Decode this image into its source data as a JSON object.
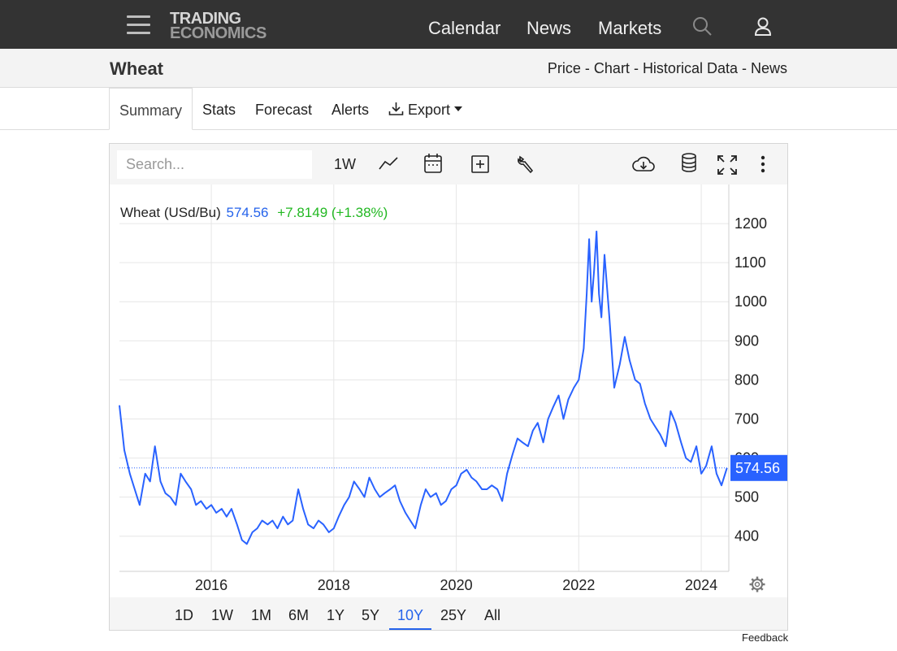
{
  "brand": {
    "line1": "TRADING",
    "line2": "ECONOMICS"
  },
  "nav": {
    "calendar": "Calendar",
    "news": "News",
    "markets": "Markets",
    "search_icon": "search-icon",
    "user_icon": "user-icon"
  },
  "header": {
    "title": "Wheat",
    "breadcrumb": [
      "Price",
      "Chart",
      "Historical Data",
      "News"
    ],
    "separator": " - "
  },
  "tabs": {
    "summary": "Summary",
    "stats": "Stats",
    "forecast": "Forecast",
    "alerts": "Alerts",
    "export": "Export"
  },
  "toolbar": {
    "search_placeholder": "Search...",
    "interval": "1W"
  },
  "legend": {
    "name": "Wheat (USd/Bu)",
    "price": "574.56",
    "change": "+7.8149 (+1.38%)"
  },
  "last_price_label": "574.56",
  "ranges": {
    "d1": "1D",
    "w1": "1W",
    "m1": "1M",
    "m6": "6M",
    "y1": "1Y",
    "y5": "5Y",
    "y10": "10Y",
    "y25": "25Y",
    "all": "All",
    "active": "10Y"
  },
  "feedback": "Feedback",
  "colors": {
    "line": "#2962ff",
    "accent": "#2563eb",
    "change": "#22b822",
    "topbar": "#333333"
  },
  "chart_data": {
    "type": "line",
    "title": "",
    "series_name": "Wheat (USd/Bu)",
    "xlabel": "",
    "ylabel": "",
    "x_tick_labels": [
      "2016",
      "2018",
      "2020",
      "2022",
      "2024"
    ],
    "y_tick_labels": [
      "400",
      "500",
      "600",
      "700",
      "800",
      "900",
      "1000",
      "1100",
      "1200"
    ],
    "xlim": [
      2014.5,
      2024.45
    ],
    "ylim": [
      310,
      1300
    ],
    "last_value": 574.56,
    "grid": true,
    "x": [
      2014.5,
      2014.58,
      2014.67,
      2014.75,
      2014.83,
      2014.92,
      2015.0,
      2015.08,
      2015.17,
      2015.25,
      2015.33,
      2015.42,
      2015.5,
      2015.58,
      2015.67,
      2015.75,
      2015.83,
      2015.92,
      2016.0,
      2016.08,
      2016.17,
      2016.25,
      2016.33,
      2016.42,
      2016.5,
      2016.58,
      2016.67,
      2016.75,
      2016.83,
      2016.92,
      2017.0,
      2017.08,
      2017.17,
      2017.25,
      2017.33,
      2017.42,
      2017.5,
      2017.58,
      2017.67,
      2017.75,
      2017.83,
      2017.92,
      2018.0,
      2018.08,
      2018.17,
      2018.25,
      2018.33,
      2018.42,
      2018.5,
      2018.58,
      2018.67,
      2018.75,
      2018.83,
      2018.92,
      2019.0,
      2019.08,
      2019.17,
      2019.25,
      2019.33,
      2019.42,
      2019.5,
      2019.58,
      2019.67,
      2019.75,
      2019.83,
      2019.92,
      2020.0,
      2020.08,
      2020.17,
      2020.25,
      2020.33,
      2020.42,
      2020.5,
      2020.58,
      2020.67,
      2020.75,
      2020.83,
      2020.92,
      2021.0,
      2021.08,
      2021.17,
      2021.25,
      2021.33,
      2021.42,
      2021.5,
      2021.58,
      2021.67,
      2021.75,
      2021.83,
      2021.92,
      2022.0,
      2022.08,
      2022.13,
      2022.17,
      2022.21,
      2022.25,
      2022.29,
      2022.33,
      2022.37,
      2022.42,
      2022.5,
      2022.58,
      2022.67,
      2022.75,
      2022.83,
      2022.92,
      2023.0,
      2023.08,
      2023.17,
      2023.25,
      2023.33,
      2023.42,
      2023.5,
      2023.58,
      2023.67,
      2023.75,
      2023.83,
      2023.92,
      2024.0,
      2024.08,
      2024.17,
      2024.25,
      2024.33,
      2024.42
    ],
    "y": [
      735,
      620,
      560,
      520,
      480,
      560,
      540,
      630,
      540,
      510,
      500,
      480,
      560,
      540,
      520,
      480,
      490,
      470,
      480,
      460,
      470,
      450,
      470,
      430,
      390,
      380,
      410,
      420,
      440,
      430,
      440,
      420,
      450,
      430,
      440,
      520,
      470,
      430,
      420,
      440,
      430,
      410,
      420,
      450,
      480,
      500,
      540,
      520,
      500,
      550,
      520,
      500,
      510,
      520,
      530,
      490,
      460,
      440,
      420,
      480,
      520,
      500,
      510,
      480,
      490,
      520,
      530,
      560,
      570,
      550,
      540,
      520,
      520,
      530,
      520,
      490,
      560,
      610,
      650,
      640,
      630,
      670,
      690,
      640,
      700,
      730,
      760,
      700,
      750,
      780,
      800,
      880,
      1020,
      1160,
      1000,
      1080,
      1180,
      1020,
      960,
      1120,
      960,
      780,
      840,
      910,
      850,
      800,
      790,
      740,
      700,
      680,
      660,
      630,
      720,
      690,
      640,
      600,
      590,
      630,
      560,
      580,
      630,
      560,
      530,
      574.56
    ]
  }
}
